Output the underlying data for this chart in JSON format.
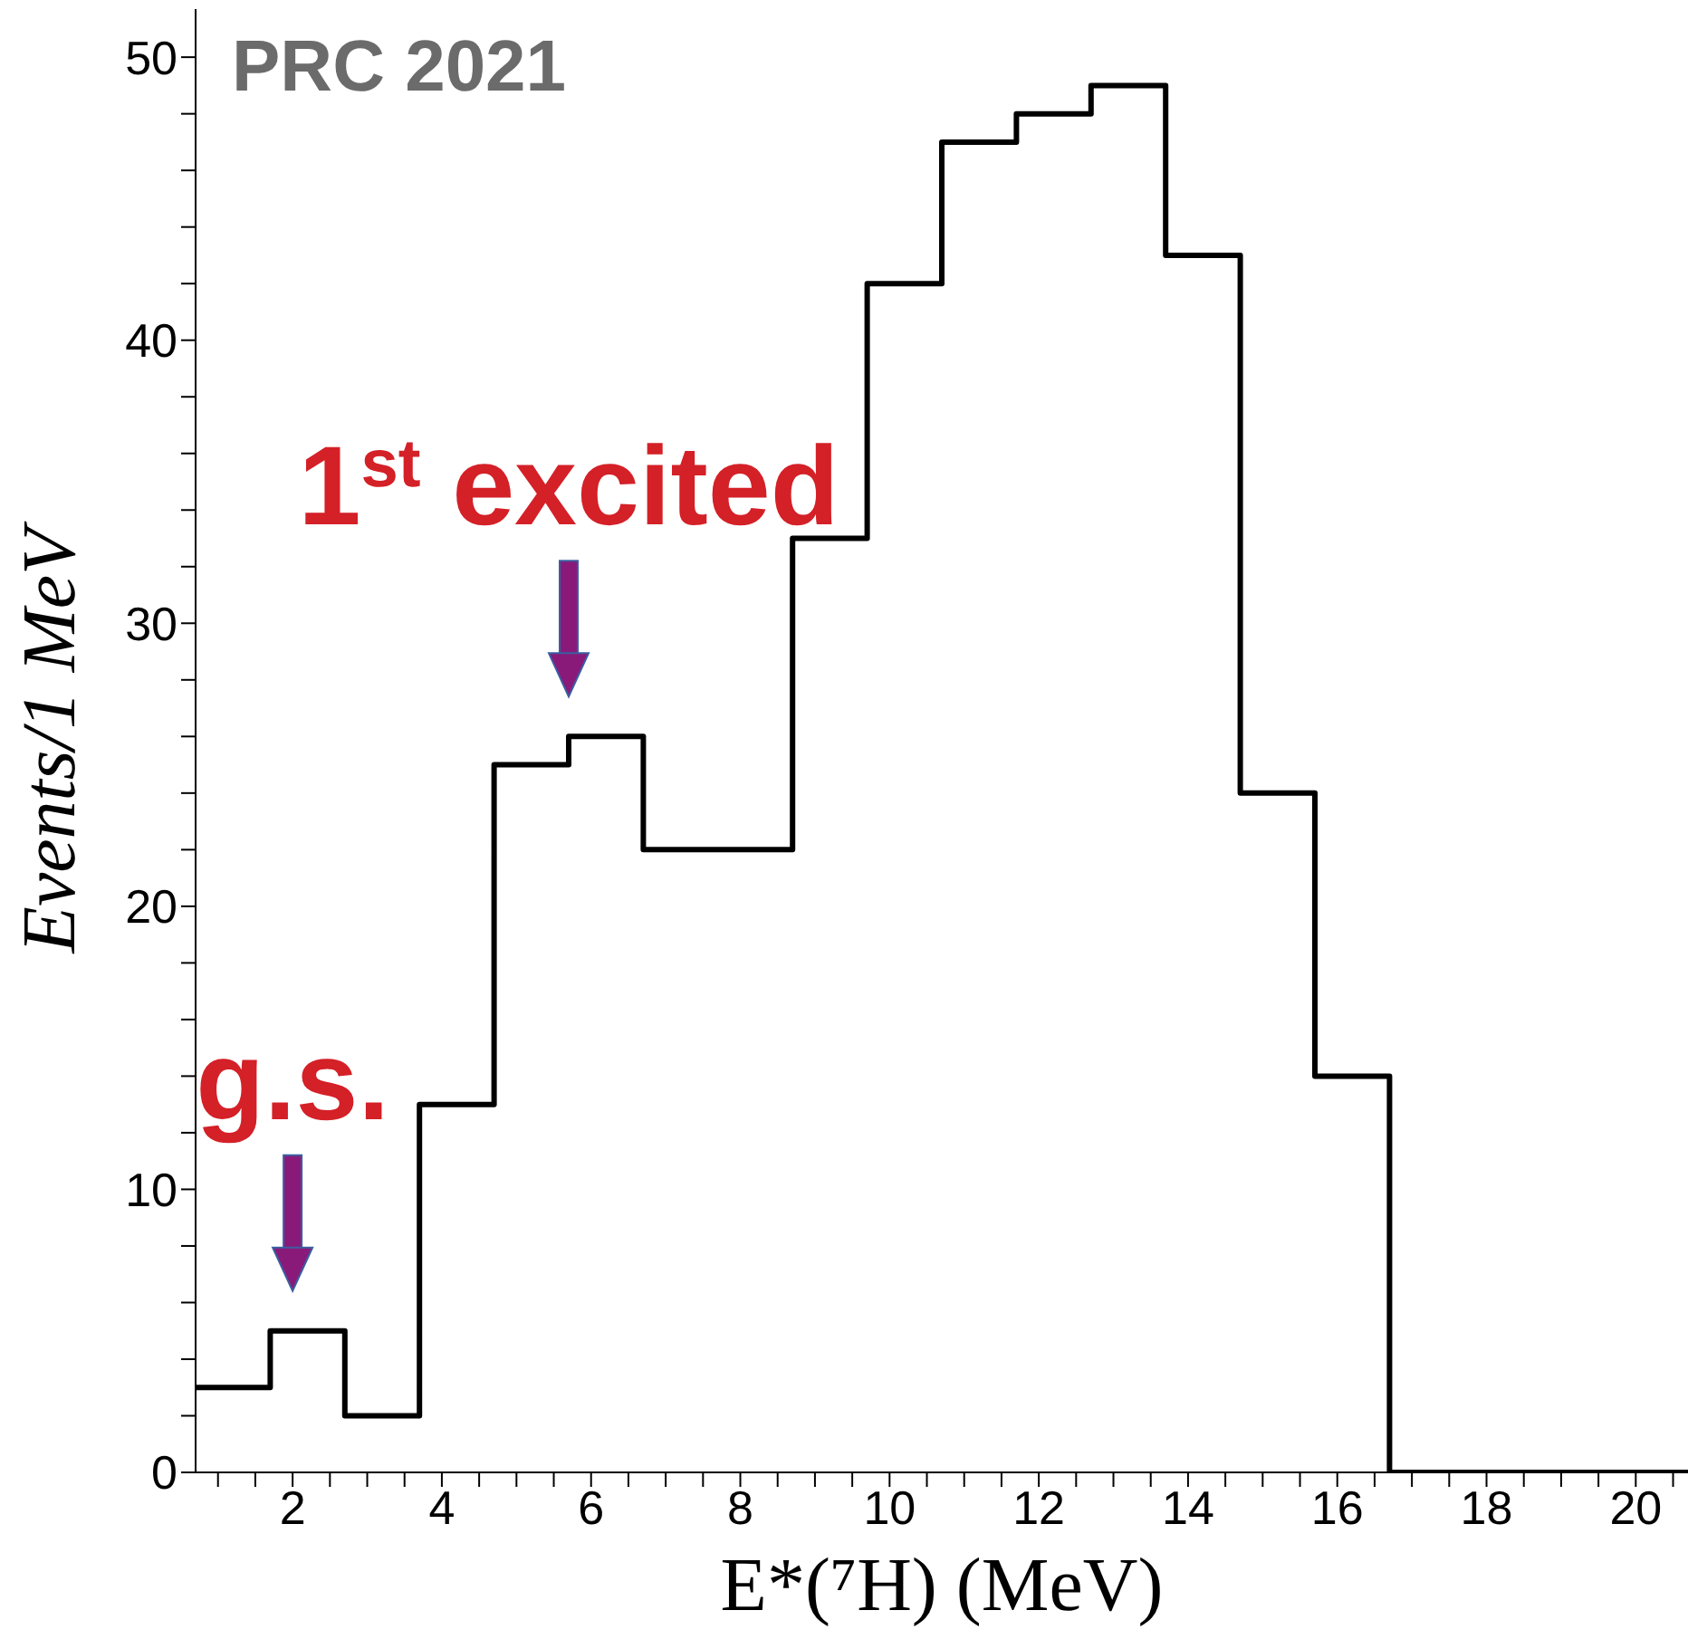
{
  "chart_data": {
    "type": "histogram",
    "xlabel": "E*(⁷H) (MeV)",
    "ylabel": "Events/1 MeV",
    "bins": [
      0.7,
      1.7,
      2.7,
      3.7,
      4.7,
      5.7,
      6.7,
      7.7,
      8.7,
      9.7,
      10.7,
      11.7,
      12.7,
      13.7,
      14.7,
      15.7,
      16.7,
      17.7,
      18.7,
      19.7,
      20.7
    ],
    "values": [
      3,
      5,
      2,
      13,
      25,
      26,
      22,
      22,
      33,
      42,
      47,
      48,
      49,
      43,
      24,
      14,
      0,
      0,
      0,
      0
    ],
    "color": "#000000",
    "xlim": [
      0.7,
      20.7
    ],
    "xticks": [
      {
        "value": 1,
        "label": null
      },
      {
        "value": 1.5,
        "label": null
      },
      2,
      {
        "value": 2.5,
        "label": null
      },
      {
        "value": 3,
        "label": null
      },
      {
        "value": 3.5,
        "label": null
      },
      4,
      {
        "value": 4.5,
        "label": null
      },
      {
        "value": 5,
        "label": null
      },
      {
        "value": 5.5,
        "label": null
      },
      6,
      {
        "value": 6.5,
        "label": null
      },
      {
        "value": 7,
        "label": null
      },
      {
        "value": 7.5,
        "label": null
      },
      8,
      {
        "value": 8.5,
        "label": null
      },
      {
        "value": 9,
        "label": null
      },
      {
        "value": 9.5,
        "label": null
      },
      10,
      {
        "value": 10.5,
        "label": null
      },
      {
        "value": 11,
        "label": null
      },
      {
        "value": 11.5,
        "label": null
      },
      12,
      {
        "value": 12.5,
        "label": null
      },
      {
        "value": 13,
        "label": null
      },
      {
        "value": 13.5,
        "label": null
      },
      14,
      {
        "value": 14.5,
        "label": null
      },
      {
        "value": 15,
        "label": null
      },
      {
        "value": 15.5,
        "label": null
      },
      16,
      {
        "value": 16.5,
        "label": null
      },
      {
        "value": 17,
        "label": null
      },
      {
        "value": 17.5,
        "label": null
      },
      18,
      {
        "value": 18.5,
        "label": null
      },
      {
        "value": 19,
        "label": null
      },
      {
        "value": 19.5,
        "label": null
      },
      20,
      {
        "value": 20.5,
        "label": null
      }
    ],
    "ylim": [
      0,
      51.7
    ],
    "yticks": [
      0,
      {
        "value": 2,
        "label": null
      },
      {
        "value": 4,
        "label": null
      },
      {
        "value": 6,
        "label": null
      },
      {
        "value": 8,
        "label": null
      },
      10,
      {
        "value": 12,
        "label": null
      },
      {
        "value": 14,
        "label": null
      },
      {
        "value": 16,
        "label": null
      },
      {
        "value": 18,
        "label": null
      },
      20,
      {
        "value": 22,
        "label": null
      },
      {
        "value": 24,
        "label": null
      },
      {
        "value": 26,
        "label": null
      },
      {
        "value": 28,
        "label": null
      },
      30,
      {
        "value": 32,
        "label": null
      },
      {
        "value": 34,
        "label": null
      },
      {
        "value": 36,
        "label": null
      },
      {
        "value": 38,
        "label": null
      },
      40,
      {
        "value": 42,
        "label": null
      },
      {
        "value": 44,
        "label": null
      },
      {
        "value": 46,
        "label": null
      },
      {
        "value": 48,
        "label": null
      },
      50
    ],
    "grid": false,
    "legend": false,
    "annotations": [
      "PRC 2021",
      {
        "text": "g.s.",
        "x": 2,
        "y": 5
      },
      {
        "text": "1$^{st}$ excited",
        "x": 5.7,
        "y": 26
      }
    ]
  }
}
